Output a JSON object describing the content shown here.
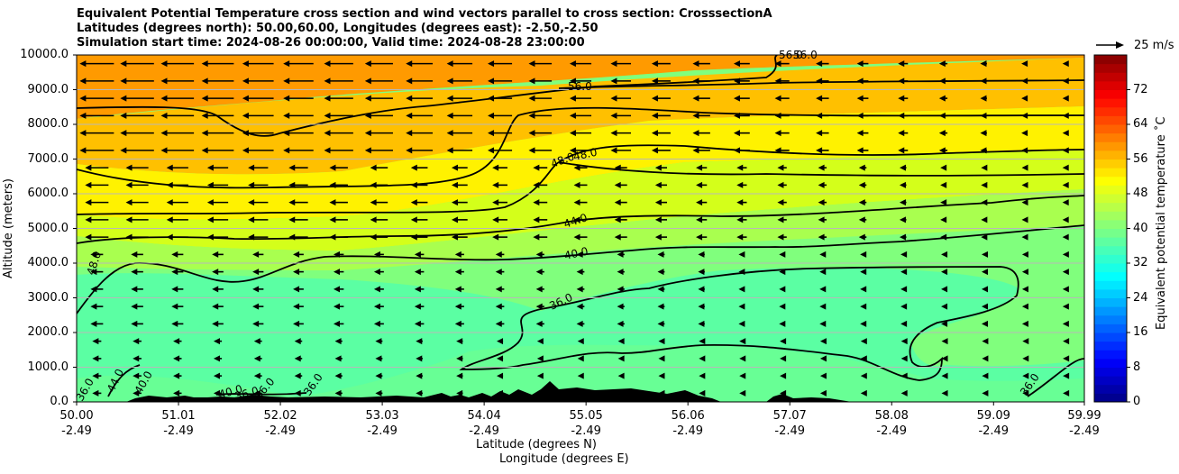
{
  "chart_data": {
    "type": "heatmap",
    "title_lines": [
      "Equivalent Potential Temperature cross section and wind vectors parallel to cross section: CrosssectionA",
      "Latitudes (degrees north): 50.00,60.00, Longitudes (degrees east): -2.50,-2.50",
      "Simulation start time: 2024-08-26 00:00:00, Valid time: 2024-08-28 23:00:00"
    ],
    "ylabel": "Altitude (meters)",
    "xlabel_lat": "Latitude (degrees N)",
    "xlabel_lon": "Longitude (degrees E)",
    "ylim": [
      0,
      10000
    ],
    "xlim": [
      50.0,
      59.99
    ],
    "y_ticks": [
      "0.0",
      "1000.0",
      "2000.0",
      "3000.0",
      "4000.0",
      "5000.0",
      "6000.0",
      "7000.0",
      "8000.0",
      "9000.0",
      "10000.0"
    ],
    "y_tick_values": [
      0,
      1000,
      2000,
      3000,
      4000,
      5000,
      6000,
      7000,
      8000,
      9000,
      10000
    ],
    "x_ticks": [
      {
        "lat": "50.00",
        "lon": "-2.49",
        "value": 50.0
      },
      {
        "lat": "51.01",
        "lon": "-2.49",
        "value": 51.01
      },
      {
        "lat": "52.02",
        "lon": "-2.49",
        "value": 52.02
      },
      {
        "lat": "53.03",
        "lon": "-2.49",
        "value": 53.03
      },
      {
        "lat": "54.04",
        "lon": "-2.49",
        "value": 54.04
      },
      {
        "lat": "55.05",
        "lon": "-2.49",
        "value": 55.05
      },
      {
        "lat": "56.06",
        "lon": "-2.49",
        "value": 56.06
      },
      {
        "lat": "57.07",
        "lon": "-2.49",
        "value": 57.07
      },
      {
        "lat": "58.08",
        "lon": "-2.49",
        "value": 58.08
      },
      {
        "lat": "59.09",
        "lon": "-2.49",
        "value": 59.09
      },
      {
        "lat": "59.99",
        "lon": "-2.49",
        "value": 59.99
      }
    ],
    "colorbar": {
      "label": "Equivalent potential temperature $^\\circ$C",
      "label_display": "Equivalent potential temperature ˚C",
      "range": [
        0,
        80
      ],
      "ticks": [
        "0",
        "8",
        "16",
        "24",
        "32",
        "40",
        "48",
        "56",
        "64",
        "72"
      ],
      "tick_values": [
        0,
        8,
        16,
        24,
        32,
        40,
        48,
        56,
        64,
        72
      ]
    },
    "wind_key": {
      "label": "25 m/s",
      "speed": 25
    },
    "contour_levels": [
      36,
      40,
      44,
      48,
      52,
      56
    ],
    "contour_labels": [
      "56.0",
      "48.0",
      "48.0",
      "44.0",
      "40.0",
      "36.0",
      "48.0",
      "44.0",
      "40.0",
      "40.0",
      "36.0",
      "36.0",
      "36.0",
      "36.0",
      "36.0",
      "56.0",
      "56.0"
    ],
    "colors": {
      "orange": "#ff9a00",
      "yellow_orange": "#ffc000",
      "yellow": "#fff200",
      "yellow_green": "#d4ff1a",
      "green": "#a9ff4f",
      "light_green": "#80ff7d",
      "aqua_green": "#55ffa9",
      "terrain": "#000000"
    }
  }
}
